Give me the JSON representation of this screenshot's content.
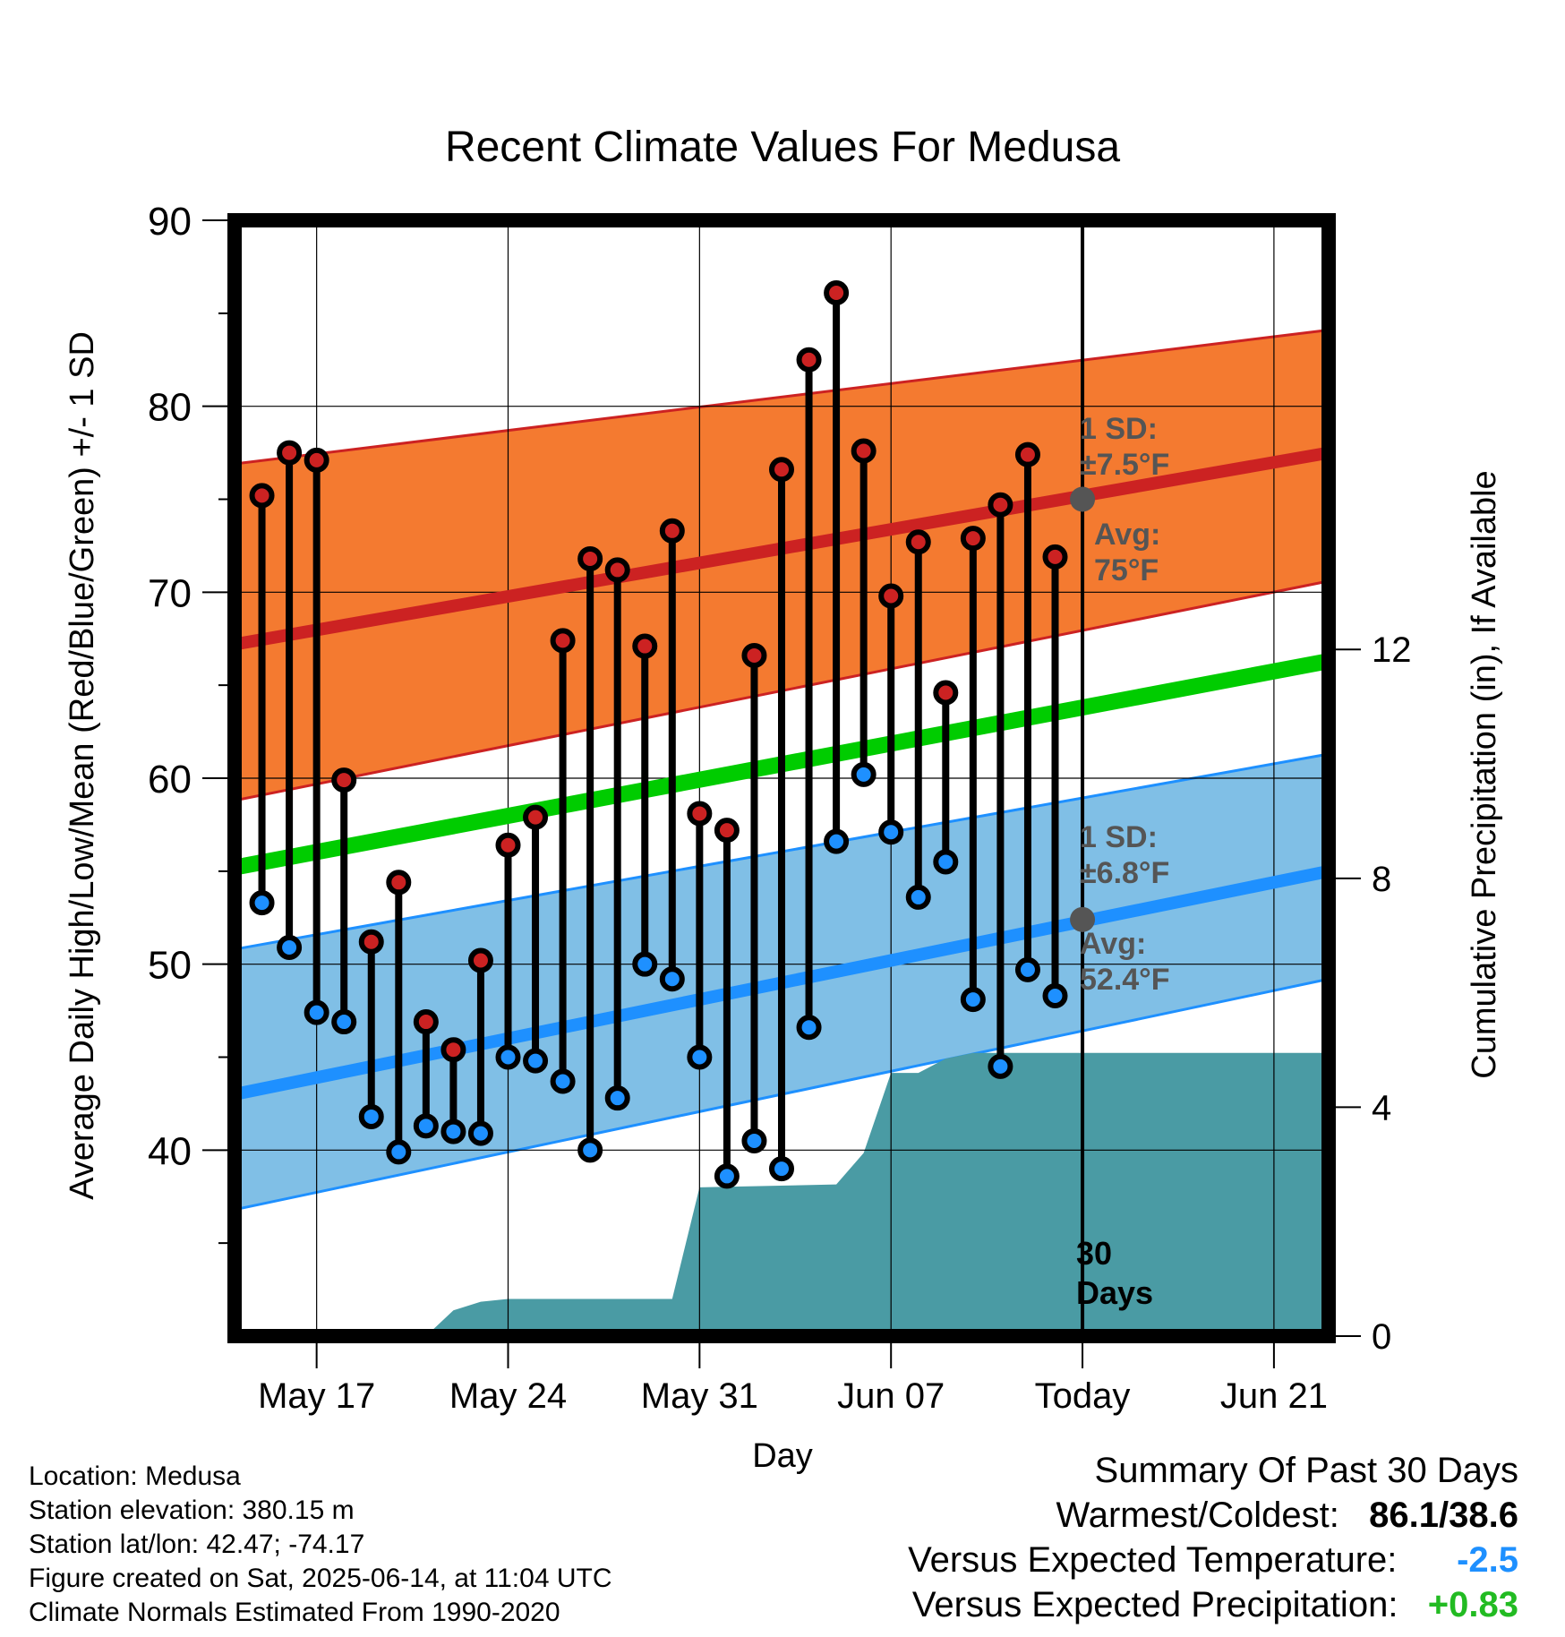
{
  "chart_data": {
    "type": "line",
    "title": "Recent Climate Values For Medusa",
    "xlabel": "Day",
    "ylabel": "Average Daily High/Low/Mean (Red/Blue/Green) +/- 1 SD",
    "y2label": "Cumulative Precipitation (in), If Available",
    "ylim": [
      30,
      90
    ],
    "y2lim": [
      0,
      19.5
    ],
    "y_ticks": [
      40,
      50,
      60,
      70,
      80,
      90
    ],
    "y2_ticks": [
      0,
      4,
      8,
      12
    ],
    "x_ticks": [
      {
        "label": "May 17",
        "date": "2025-05-17"
      },
      {
        "label": "May 24",
        "date": "2025-05-24"
      },
      {
        "label": "May 31",
        "date": "2025-05-31"
      },
      {
        "label": "Jun 07",
        "date": "2025-06-07"
      },
      {
        "label": "Today",
        "date": "2025-06-14"
      },
      {
        "label": "Jun 21",
        "date": "2025-06-21"
      }
    ],
    "x_range": [
      "2025-05-14",
      "2025-06-23"
    ],
    "dates": [
      "2025-05-15",
      "2025-05-16",
      "2025-05-17",
      "2025-05-18",
      "2025-05-19",
      "2025-05-20",
      "2025-05-21",
      "2025-05-22",
      "2025-05-23",
      "2025-05-24",
      "2025-05-25",
      "2025-05-26",
      "2025-05-27",
      "2025-05-28",
      "2025-05-29",
      "2025-05-30",
      "2025-05-31",
      "2025-06-01",
      "2025-06-02",
      "2025-06-03",
      "2025-06-04",
      "2025-06-05",
      "2025-06-06",
      "2025-06-07",
      "2025-06-08",
      "2025-06-09",
      "2025-06-10",
      "2025-06-11",
      "2025-06-12",
      "2025-06-13"
    ],
    "series": [
      {
        "name": "High",
        "color": "#cc2222",
        "values": [
          75.2,
          77.5,
          77.1,
          59.9,
          51.2,
          54.4,
          46.9,
          45.4,
          50.2,
          56.4,
          57.9,
          67.4,
          71.8,
          71.2,
          67.1,
          73.3,
          58.1,
          57.2,
          66.6,
          76.6,
          82.5,
          86.1,
          77.6,
          69.8,
          72.7,
          64.6,
          72.9,
          74.7,
          77.4,
          71.9
        ]
      },
      {
        "name": "Low",
        "color": "#1e90ff",
        "values": [
          53.3,
          50.9,
          47.4,
          46.9,
          41.8,
          39.9,
          41.3,
          41.0,
          40.9,
          45.0,
          44.8,
          43.7,
          40.0,
          42.8,
          50.0,
          49.2,
          45.0,
          38.6,
          40.5,
          39.0,
          46.6,
          56.6,
          60.2,
          57.1,
          53.6,
          55.5,
          48.1,
          44.5,
          49.7,
          48.3
        ]
      }
    ],
    "normals": {
      "x_range": [
        "2025-05-14",
        "2025-06-23"
      ],
      "avg_high": [
        67.2,
        77.5
      ],
      "avg_low": [
        43.0,
        55.0
      ],
      "avg_mean": [
        55.2,
        66.3
      ],
      "high_band_lower": [
        58.8,
        70.6
      ],
      "high_band_upper": [
        76.9,
        84.1
      ],
      "low_band_lower": [
        36.8,
        49.2
      ],
      "low_band_upper": [
        50.8,
        61.3
      ],
      "high_band_color": "#f47a30",
      "low_band_color": "#80bfe6",
      "mean_color": "#00cc00"
    },
    "precip": {
      "color": "#4a9ba4",
      "points": [
        {
          "date": "2025-05-14",
          "value": 0
        },
        {
          "date": "2025-05-21",
          "value": 0
        },
        {
          "date": "2025-05-22",
          "value": 0.45
        },
        {
          "date": "2025-05-23",
          "value": 0.6
        },
        {
          "date": "2025-05-24",
          "value": 0.65
        },
        {
          "date": "2025-05-30",
          "value": 0.65
        },
        {
          "date": "2025-05-31",
          "value": 2.6
        },
        {
          "date": "2025-06-05",
          "value": 2.65
        },
        {
          "date": "2025-06-06",
          "value": 3.2
        },
        {
          "date": "2025-06-07",
          "value": 4.6
        },
        {
          "date": "2025-06-08",
          "value": 4.6
        },
        {
          "date": "2025-06-09",
          "value": 4.85
        },
        {
          "date": "2025-06-10",
          "value": 4.95
        },
        {
          "date": "2025-06-23",
          "value": 4.95
        }
      ]
    },
    "annotations": {
      "today_high_avg": 75,
      "today_low_avg": 52.4,
      "high_sd_label": [
        "1 SD:",
        "±7.5°F"
      ],
      "high_avg_label": [
        "Avg:",
        "75°F"
      ],
      "low_sd_label": [
        "1 SD:",
        "±6.8°F"
      ],
      "low_avg_label": [
        "Avg:",
        "52.4°F"
      ],
      "period_label": [
        "30",
        "Days"
      ]
    },
    "grid": true
  },
  "info": {
    "location": "Location: Medusa",
    "elevation": "Station elevation: 380.15 m",
    "latlon": "Station lat/lon: 42.47; -74.17",
    "created": "Figure created on Sat, 2025-06-14, at 11:04 UTC",
    "normals": "Climate Normals Estimated From 1990-2020"
  },
  "summary": {
    "title": "Summary Of Past 30 Days",
    "warm_cold_label": "Warmest/Coldest:",
    "warm_cold_value": "86.1/38.6",
    "temp_label": "Versus Expected Temperature:",
    "temp_value": "-2.5",
    "temp_color": "#1e90ff",
    "precip_label": "Versus Expected Precipitation:",
    "precip_value": "+0.83",
    "precip_color": "#22bb22"
  }
}
